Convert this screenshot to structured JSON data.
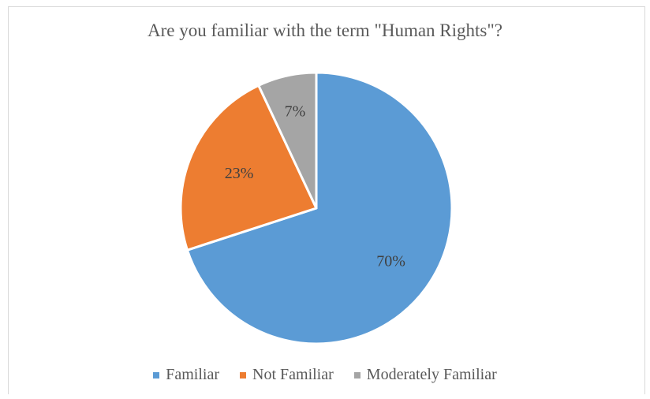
{
  "chart_data": {
    "type": "pie",
    "title": "Are you familiar with the term \"Human Rights\"?",
    "categories": [
      "Familiar",
      "Not Familiar",
      "Moderately Familiar"
    ],
    "values": [
      70,
      23,
      7
    ],
    "labels": [
      "70%",
      "23%",
      "7%"
    ],
    "colors": [
      "#5b9bd5",
      "#ed7d31",
      "#a5a5a5"
    ],
    "legend_position": "bottom"
  }
}
